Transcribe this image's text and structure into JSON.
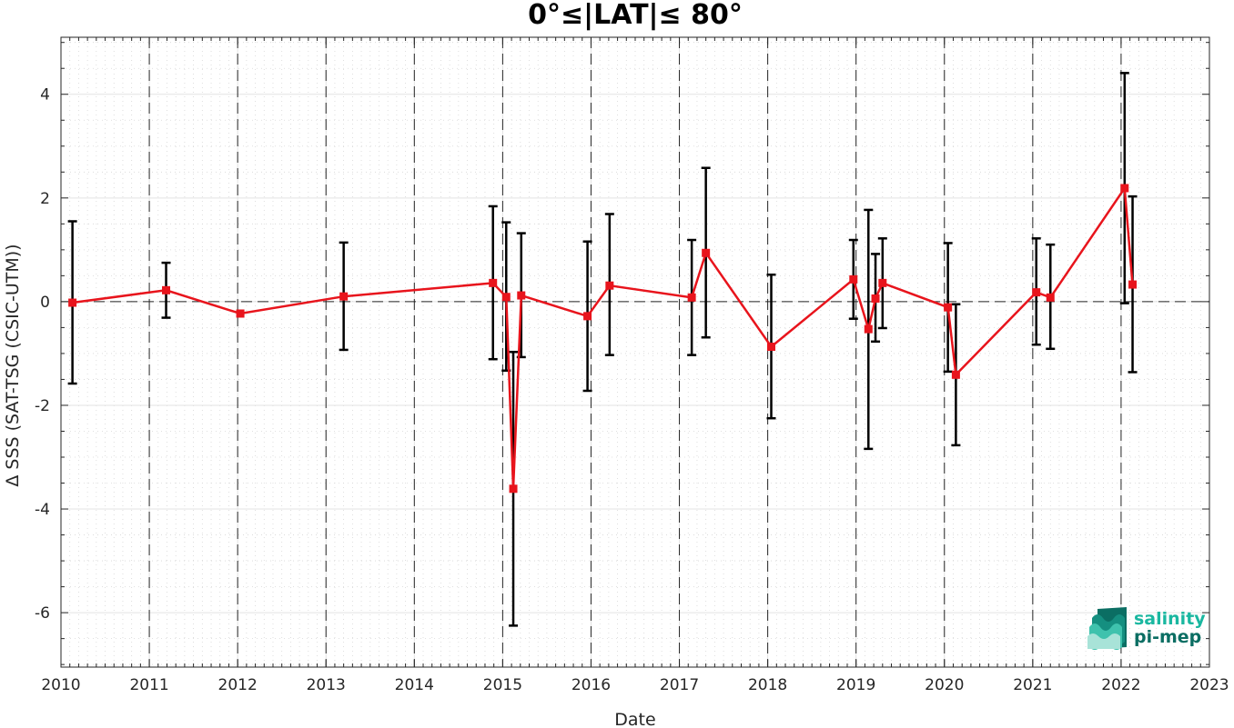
{
  "chart_data": {
    "type": "line",
    "title": "0°≤|LAT|≤ 80°",
    "xlabel": "Date",
    "ylabel": "Δ SSS (SAT-TSG (CSIC-UTM))",
    "xlim": [
      2010,
      2023
    ],
    "ylim": [
      -7.05,
      5.1
    ],
    "x_ticks": [
      "2010",
      "2011",
      "2012",
      "2013",
      "2014",
      "2015",
      "2016",
      "2017",
      "2018",
      "2019",
      "2020",
      "2021",
      "2022",
      "2023"
    ],
    "y_ticks": [
      "-6",
      "-4",
      "-2",
      "0",
      "2",
      "4"
    ],
    "grid": true,
    "legend": "none",
    "year_boundaries": [
      2011,
      2012,
      2013,
      2014,
      2015,
      2016,
      2017,
      2018,
      2019,
      2020,
      2021,
      2022
    ],
    "zero_line": 0,
    "series": [
      {
        "color": "#e8141c",
        "x": [
          2010.13,
          2011.19,
          2012.03,
          2013.2,
          2014.89,
          2015.04,
          2015.12,
          2015.21,
          2015.96,
          2016.21,
          2017.14,
          2017.3,
          2018.04,
          2018.97,
          2019.14,
          2019.22,
          2019.3,
          2020.04,
          2020.13,
          2021.04,
          2021.2,
          2022.04,
          2022.13
        ],
        "y": [
          -0.02,
          0.22,
          -0.23,
          0.1,
          0.36,
          0.09,
          -3.61,
          0.12,
          -0.28,
          0.31,
          0.08,
          0.94,
          -0.87,
          0.43,
          -0.53,
          0.06,
          0.36,
          -0.11,
          -1.41,
          0.18,
          0.08,
          2.19,
          0.33
        ],
        "err_low": [
          -1.58,
          -0.31,
          null,
          -0.93,
          -1.11,
          -1.33,
          -6.25,
          -1.07,
          -1.72,
          -1.03,
          -1.03,
          -0.69,
          -2.25,
          -0.33,
          -2.84,
          -0.77,
          -0.51,
          -1.35,
          -2.77,
          -0.83,
          -0.91,
          -0.03,
          -1.36
        ],
        "err_high": [
          1.55,
          0.75,
          null,
          1.14,
          1.84,
          1.53,
          -0.97,
          1.32,
          1.16,
          1.69,
          1.19,
          2.58,
          0.52,
          1.19,
          1.77,
          0.92,
          1.22,
          1.13,
          -0.05,
          1.22,
          1.1,
          4.41,
          2.03
        ]
      }
    ]
  },
  "logo": {
    "line1": "salinity",
    "line2": "pi-mep",
    "color1": "#1ab7a0",
    "color2": "#0b6e63"
  }
}
